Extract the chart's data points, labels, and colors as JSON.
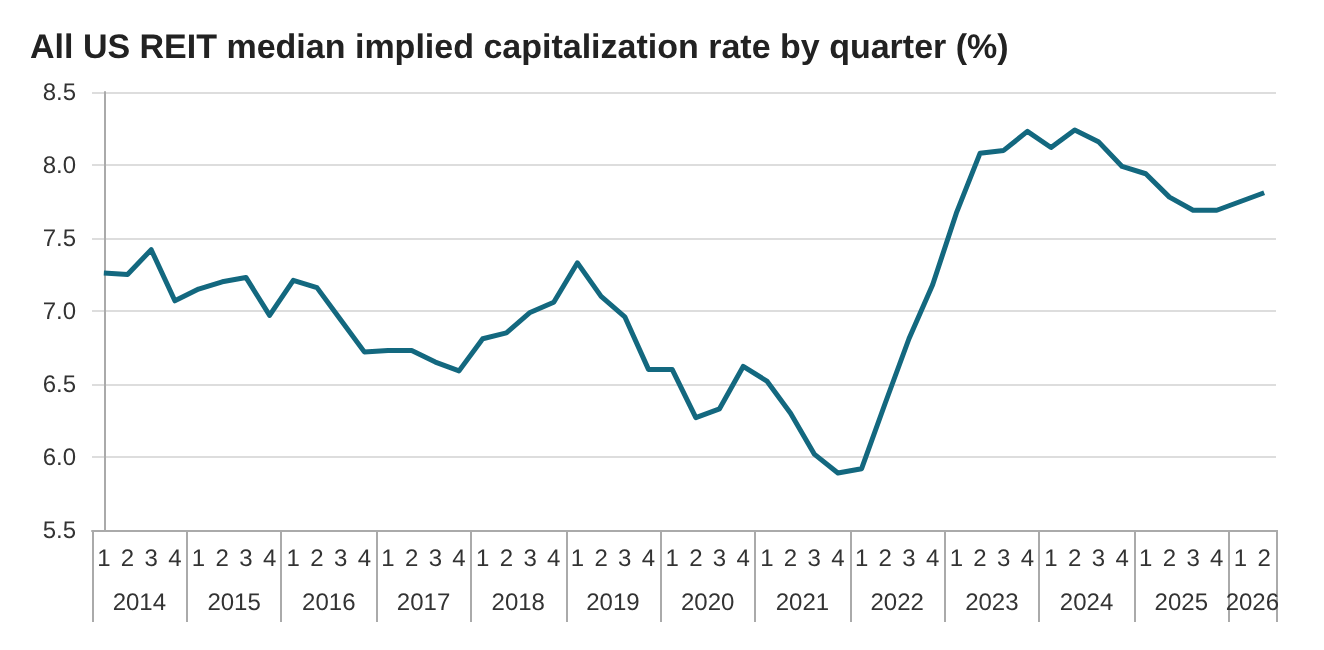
{
  "chart_data": {
    "type": "line",
    "title": "All US REIT median implied capitalization rate by quarter (%)",
    "categories": [
      "1",
      "2",
      "3",
      "4",
      "1",
      "2",
      "3",
      "4",
      "1",
      "2",
      "3",
      "4",
      "1",
      "2",
      "3",
      "4",
      "1",
      "2",
      "3",
      "4",
      "1",
      "2",
      "3",
      "4",
      "1",
      "2",
      "3",
      "4",
      "1",
      "2",
      "3",
      "4",
      "1",
      "2",
      "3",
      "4",
      "1",
      "2",
      "3",
      "4",
      "1",
      "2",
      "3",
      "4",
      "1",
      "2",
      "3",
      "4",
      "1",
      "2"
    ],
    "series": [
      {
        "color": "#13687f",
        "values": [
          7.26,
          7.25,
          7.42,
          7.07,
          7.15,
          7.2,
          7.23,
          6.97,
          7.21,
          7.16,
          6.94,
          6.72,
          6.73,
          6.73,
          6.65,
          6.59,
          6.81,
          6.85,
          6.99,
          7.06,
          7.33,
          7.1,
          6.96,
          6.6,
          6.6,
          6.27,
          6.33,
          6.62,
          6.52,
          6.3,
          6.02,
          5.89,
          5.92,
          6.37,
          6.81,
          7.18,
          7.67,
          8.08,
          8.1,
          8.23,
          8.12,
          8.24,
          8.16,
          7.99,
          7.94,
          7.78,
          7.69,
          7.69,
          7.75,
          7.81
        ]
      }
    ],
    "annotations": [
      "2014",
      "2015",
      "2016",
      "2017",
      "2018",
      "2019",
      "2020",
      "2021",
      "2022",
      "2023",
      "2024",
      "2025",
      "2026"
    ],
    "ylim": [
      5.5,
      8.5
    ],
    "yticks": [
      {
        "value": 5.5,
        "label": "5.5"
      },
      {
        "value": 6,
        "label": "6.0"
      },
      {
        "value": 6.5,
        "label": "6.5"
      },
      {
        "value": 7,
        "label": "7.0"
      },
      {
        "value": 7.5,
        "label": "7.5"
      },
      {
        "value": 8,
        "label": "8.0"
      },
      {
        "value": 8.5,
        "label": "8.5"
      }
    ],
    "grid": "y",
    "marker": "none",
    "line_style": "solid"
  }
}
